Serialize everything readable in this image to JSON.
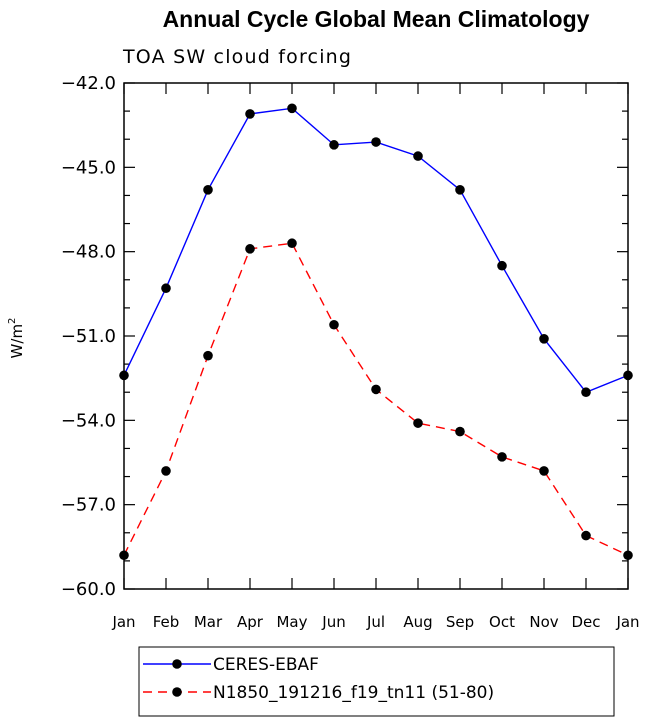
{
  "chart_data": {
    "type": "line",
    "title": "Annual Cycle Global Mean Climatology",
    "subtitle": "TOA SW cloud forcing",
    "ylabel": "W/m",
    "ylabel_superscript": "2",
    "xlabel": "",
    "categories": [
      "Jan",
      "Feb",
      "Mar",
      "Apr",
      "May",
      "Jun",
      "Jul",
      "Aug",
      "Sep",
      "Oct",
      "Nov",
      "Dec",
      "Jan"
    ],
    "ylim": [
      -60.0,
      -42.0
    ],
    "yticks": [
      "-42.0",
      "-45.0",
      "-48.0",
      "-51.0",
      "-54.0",
      "-57.0",
      "-60.0"
    ],
    "grid": false,
    "legend_position": "bottom",
    "series": [
      {
        "name": "CERES-EBAF",
        "color": "#0000ff",
        "line_style": "solid",
        "marker": "filled-circle",
        "values": [
          -52.4,
          -49.3,
          -45.8,
          -43.1,
          -42.9,
          -44.2,
          -44.1,
          -44.6,
          -45.8,
          -48.5,
          -51.1,
          -53.0,
          -52.4
        ]
      },
      {
        "name": "N1850_191216_f19_tn11 (51-80)",
        "color": "#ff0000",
        "line_style": "dashed",
        "marker": "filled-circle",
        "values": [
          -58.8,
          -55.8,
          -51.7,
          -47.9,
          -47.7,
          -50.6,
          -52.9,
          -54.1,
          -54.4,
          -55.3,
          -55.8,
          -58.1,
          -58.8
        ]
      }
    ]
  }
}
